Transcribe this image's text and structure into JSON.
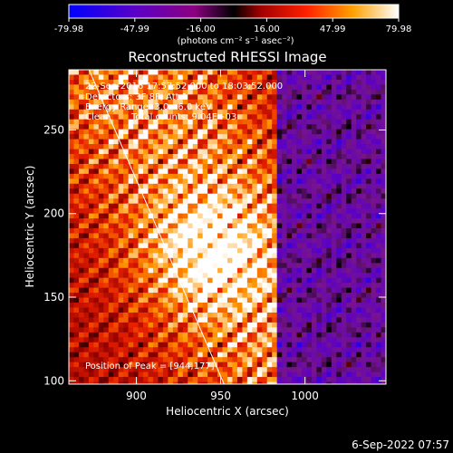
{
  "chart_data": {
    "type": "heatmap",
    "title": "Reconstructed RHESSI Image",
    "xlabel": "Heliocentric X (arcsec)",
    "ylabel": "Heliocentric Y (arcsec)",
    "x_ticks": [
      900,
      950,
      1000
    ],
    "y_ticks": [
      100,
      150,
      200,
      250
    ],
    "xlim": [
      860,
      1048
    ],
    "ylim": [
      98,
      286
    ],
    "colorbar": {
      "ticks": [
        "-79.98",
        "-47.99",
        "-16.00",
        "16.00",
        "47.99",
        "79.98"
      ],
      "unit_label": "(photons cm⁻² s⁻¹ asec⁻²)",
      "range": [
        -79.98,
        79.98
      ]
    },
    "annotations": {
      "time_range": "22-Sep-2016 17:57:52.000 to 18:03:52.000",
      "detectors": "Detectors: 3F 8F, Att 1",
      "energy_range": "Energy Range: 3.0 - 6.0 keV",
      "method": "Clean",
      "total_counts": "Total counts: 9.04E+03",
      "peak": "Position of Peak = [944,177]"
    },
    "peak": [
      944,
      177
    ],
    "limb_line": [
      [
        872,
        286
      ],
      [
        952,
        98
      ]
    ],
    "grid": false,
    "legend": "none"
  },
  "footer": {
    "date": "6-Sep-2022 07:57"
  }
}
